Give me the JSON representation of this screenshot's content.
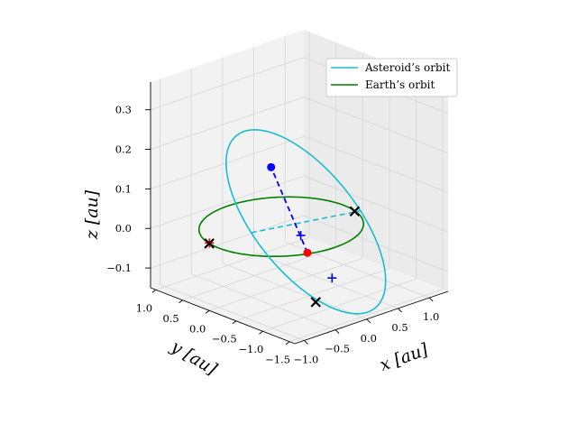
{
  "chart_data": {
    "type": "line3d",
    "xlabel": "$x$ [au]",
    "ylabel": "$y$ [au]",
    "zlabel": "$z$ [au]",
    "axis_labels": {
      "x": "x [au]",
      "y": "y [au]",
      "z": "z [au]"
    },
    "x_ticks": [
      "−1.0",
      "−0.5",
      "0.0",
      "0.5",
      "1.0"
    ],
    "y_ticks": [
      "1.0",
      "0.5",
      "0.0",
      "−0.5",
      "−1.0",
      "−1.5"
    ],
    "z_ticks": [
      "0.3",
      "0.2",
      "0.1",
      "0.0",
      "−0.1"
    ],
    "xlim": [
      -1.15,
      1.3
    ],
    "ylim": [
      -1.6,
      1.1
    ],
    "zlim": [
      -0.15,
      0.37
    ],
    "grid": true,
    "legend_position": "upper-right",
    "legend": [
      "Asteroid’s orbit",
      "Earth’s orbit"
    ],
    "colors": {
      "asteroid": "#17becf",
      "earth": "#008000",
      "transfer": "#0000ff",
      "asteroid_point": "#0000ff",
      "earth_point": "#ff0000",
      "markers": "#000000",
      "pane_xz": "#f2f2f2",
      "pane_yz": "#ebebeb",
      "pane_floor": "#f2f2f2",
      "gridline": "#d9d9d9"
    },
    "series": [
      {
        "name": "Asteroid’s orbit",
        "style": "solid",
        "orbit": {
          "a": 1.05,
          "e": 0.45,
          "inclination_deg": 12,
          "node_deg": 20,
          "peri_deg": 170
        }
      },
      {
        "name": "Earth’s orbit",
        "style": "solid",
        "orbit": {
          "a": 1.0,
          "e": 0.0,
          "inclination_deg": 0,
          "node_deg": 0,
          "peri_deg": 0
        }
      }
    ],
    "asteroid_axis_line": {
      "style": "dashed"
    },
    "transfer_line": {
      "style": "dashed",
      "start": [
        -0.35,
        -0.9,
        0.0
      ],
      "end": [
        0.35,
        0.6,
        0.1
      ]
    },
    "earth_point": [
      -0.35,
      -0.9,
      0.0
    ],
    "asteroid_point": [
      0.35,
      0.6,
      0.1
    ],
    "blue_plus_markers": [
      [
        -0.2,
        -0.6,
        0.02
      ],
      [
        0.0,
        -0.95,
        -0.08
      ]
    ],
    "black_x_markers": [
      [
        -0.98,
        0.2,
        0.0
      ],
      [
        0.96,
        -0.25,
        0.0
      ],
      [
        -0.32,
        -1.02,
        -0.12
      ],
      [
        1.28,
        0.0,
        0.34
      ]
    ],
    "red_plus_markers": [
      [
        -0.97,
        0.21,
        0.0
      ],
      [
        1.27,
        0.01,
        0.34
      ]
    ]
  }
}
